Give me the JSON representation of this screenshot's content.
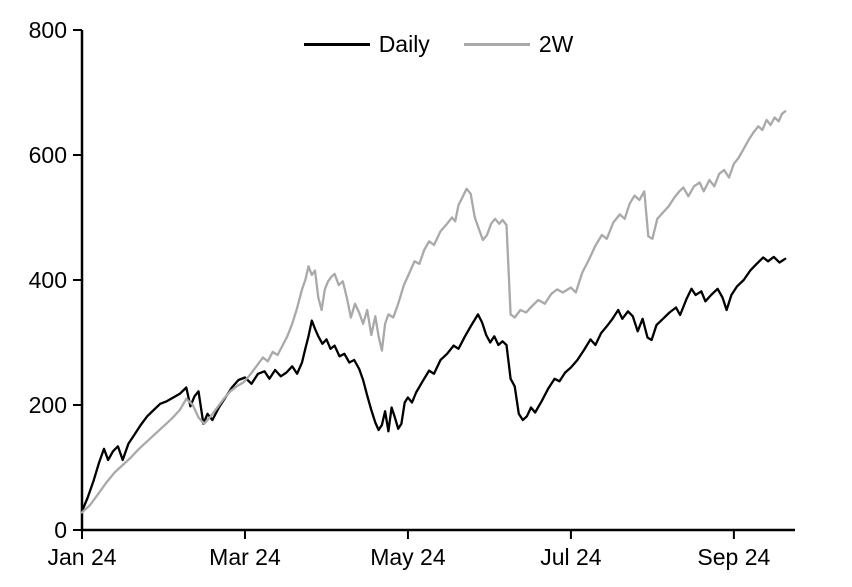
{
  "chart_data": {
    "type": "line",
    "title": "",
    "xlabel": "",
    "ylabel": "",
    "grid": false,
    "axis_color": "#000000",
    "x_values_unit": "months_from_jan24",
    "x_domain": [
      0,
      8.75
    ],
    "y_domain": [
      0,
      800
    ],
    "x_ticks": [
      {
        "value": 0,
        "label": "Jan 24"
      },
      {
        "value": 2,
        "label": "Mar 24"
      },
      {
        "value": 4,
        "label": "May 24"
      },
      {
        "value": 6,
        "label": "Jul 24"
      },
      {
        "value": 8,
        "label": "Sep 24"
      }
    ],
    "y_ticks": [
      {
        "value": 0,
        "label": "0"
      },
      {
        "value": 200,
        "label": "200"
      },
      {
        "value": 400,
        "label": "400"
      },
      {
        "value": 600,
        "label": "600"
      },
      {
        "value": 800,
        "label": "800"
      }
    ],
    "legend": {
      "position": "top-center",
      "entries": [
        {
          "name": "Daily",
          "color": "#000000"
        },
        {
          "name": "2W",
          "color": "#a9a9a9"
        }
      ]
    },
    "series": [
      {
        "name": "Daily",
        "color": "#000000",
        "points": [
          [
            0,
            30
          ],
          [
            0.07,
            52
          ],
          [
            0.14,
            78
          ],
          [
            0.21,
            108
          ],
          [
            0.27,
            130
          ],
          [
            0.32,
            112
          ],
          [
            0.38,
            126
          ],
          [
            0.44,
            134
          ],
          [
            0.5,
            112
          ],
          [
            0.57,
            138
          ],
          [
            0.64,
            152
          ],
          [
            0.72,
            168
          ],
          [
            0.8,
            182
          ],
          [
            0.88,
            192
          ],
          [
            0.96,
            202
          ],
          [
            1.04,
            206
          ],
          [
            1.12,
            212
          ],
          [
            1.2,
            218
          ],
          [
            1.28,
            228
          ],
          [
            1.33,
            198
          ],
          [
            1.38,
            214
          ],
          [
            1.43,
            222
          ],
          [
            1.49,
            170
          ],
          [
            1.54,
            186
          ],
          [
            1.6,
            176
          ],
          [
            1.68,
            196
          ],
          [
            1.76,
            212
          ],
          [
            1.84,
            228
          ],
          [
            1.92,
            240
          ],
          [
            2,
            244
          ],
          [
            2.08,
            234
          ],
          [
            2.16,
            250
          ],
          [
            2.24,
            254
          ],
          [
            2.3,
            242
          ],
          [
            2.37,
            256
          ],
          [
            2.44,
            246
          ],
          [
            2.51,
            252
          ],
          [
            2.58,
            262
          ],
          [
            2.64,
            250
          ],
          [
            2.7,
            268
          ],
          [
            2.74,
            290
          ],
          [
            2.78,
            310
          ],
          [
            2.82,
            335
          ],
          [
            2.86,
            322
          ],
          [
            2.9,
            310
          ],
          [
            2.95,
            298
          ],
          [
            3,
            305
          ],
          [
            3.05,
            290
          ],
          [
            3.1,
            295
          ],
          [
            3.16,
            278
          ],
          [
            3.22,
            282
          ],
          [
            3.28,
            268
          ],
          [
            3.34,
            272
          ],
          [
            3.4,
            258
          ],
          [
            3.45,
            240
          ],
          [
            3.5,
            215
          ],
          [
            3.55,
            192
          ],
          [
            3.6,
            172
          ],
          [
            3.64,
            160
          ],
          [
            3.68,
            168
          ],
          [
            3.72,
            190
          ],
          [
            3.76,
            158
          ],
          [
            3.8,
            196
          ],
          [
            3.84,
            180
          ],
          [
            3.88,
            162
          ],
          [
            3.92,
            170
          ],
          [
            3.96,
            204
          ],
          [
            4,
            212
          ],
          [
            4.05,
            204
          ],
          [
            4.1,
            220
          ],
          [
            4.18,
            238
          ],
          [
            4.26,
            255
          ],
          [
            4.32,
            250
          ],
          [
            4.4,
            272
          ],
          [
            4.48,
            282
          ],
          [
            4.56,
            295
          ],
          [
            4.62,
            290
          ],
          [
            4.7,
            310
          ],
          [
            4.78,
            328
          ],
          [
            4.86,
            345
          ],
          [
            4.91,
            332
          ],
          [
            4.96,
            312
          ],
          [
            5.01,
            300
          ],
          [
            5.06,
            310
          ],
          [
            5.11,
            296
          ],
          [
            5.16,
            302
          ],
          [
            5.21,
            296
          ],
          [
            5.26,
            242
          ],
          [
            5.31,
            230
          ],
          [
            5.36,
            186
          ],
          [
            5.41,
            176
          ],
          [
            5.46,
            182
          ],
          [
            5.51,
            196
          ],
          [
            5.56,
            188
          ],
          [
            5.64,
            206
          ],
          [
            5.72,
            226
          ],
          [
            5.8,
            242
          ],
          [
            5.86,
            238
          ],
          [
            5.93,
            252
          ],
          [
            6,
            260
          ],
          [
            6.08,
            272
          ],
          [
            6.16,
            288
          ],
          [
            6.24,
            305
          ],
          [
            6.3,
            296
          ],
          [
            6.37,
            315
          ],
          [
            6.44,
            326
          ],
          [
            6.51,
            338
          ],
          [
            6.58,
            352
          ],
          [
            6.63,
            338
          ],
          [
            6.7,
            350
          ],
          [
            6.76,
            342
          ],
          [
            6.82,
            318
          ],
          [
            6.88,
            338
          ],
          [
            6.94,
            308
          ],
          [
            6.99,
            304
          ],
          [
            7.05,
            328
          ],
          [
            7.13,
            338
          ],
          [
            7.21,
            348
          ],
          [
            7.29,
            356
          ],
          [
            7.34,
            344
          ],
          [
            7.42,
            370
          ],
          [
            7.48,
            386
          ],
          [
            7.53,
            376
          ],
          [
            7.6,
            382
          ],
          [
            7.65,
            366
          ],
          [
            7.72,
            376
          ],
          [
            7.8,
            386
          ],
          [
            7.86,
            372
          ],
          [
            7.91,
            352
          ],
          [
            7.97,
            376
          ],
          [
            8.04,
            390
          ],
          [
            8.12,
            400
          ],
          [
            8.2,
            415
          ],
          [
            8.28,
            426
          ],
          [
            8.36,
            436
          ],
          [
            8.42,
            430
          ],
          [
            8.49,
            437
          ],
          [
            8.56,
            428
          ],
          [
            8.63,
            434
          ]
        ]
      },
      {
        "name": "2W",
        "color": "#a9a9a9",
        "points": [
          [
            0,
            28
          ],
          [
            0.1,
            40
          ],
          [
            0.2,
            58
          ],
          [
            0.3,
            76
          ],
          [
            0.4,
            92
          ],
          [
            0.5,
            104
          ],
          [
            0.6,
            116
          ],
          [
            0.7,
            130
          ],
          [
            0.8,
            142
          ],
          [
            0.9,
            154
          ],
          [
            1,
            166
          ],
          [
            1.1,
            178
          ],
          [
            1.2,
            192
          ],
          [
            1.28,
            210
          ],
          [
            1.36,
            200
          ],
          [
            1.43,
            180
          ],
          [
            1.5,
            170
          ],
          [
            1.58,
            182
          ],
          [
            1.66,
            196
          ],
          [
            1.74,
            210
          ],
          [
            1.82,
            222
          ],
          [
            1.9,
            230
          ],
          [
            1.98,
            236
          ],
          [
            2.06,
            248
          ],
          [
            2.14,
            262
          ],
          [
            2.22,
            276
          ],
          [
            2.28,
            270
          ],
          [
            2.34,
            285
          ],
          [
            2.4,
            280
          ],
          [
            2.46,
            295
          ],
          [
            2.52,
            310
          ],
          [
            2.58,
            330
          ],
          [
            2.64,
            355
          ],
          [
            2.7,
            385
          ],
          [
            2.74,
            400
          ],
          [
            2.78,
            422
          ],
          [
            2.82,
            408
          ],
          [
            2.86,
            415
          ],
          [
            2.9,
            372
          ],
          [
            2.94,
            352
          ],
          [
            2.98,
            385
          ],
          [
            3.02,
            398
          ],
          [
            3.06,
            405
          ],
          [
            3.1,
            410
          ],
          [
            3.15,
            392
          ],
          [
            3.2,
            398
          ],
          [
            3.25,
            372
          ],
          [
            3.3,
            340
          ],
          [
            3.35,
            362
          ],
          [
            3.4,
            348
          ],
          [
            3.45,
            330
          ],
          [
            3.5,
            352
          ],
          [
            3.55,
            312
          ],
          [
            3.6,
            342
          ],
          [
            3.64,
            310
          ],
          [
            3.68,
            287
          ],
          [
            3.72,
            330
          ],
          [
            3.76,
            345
          ],
          [
            3.82,
            340
          ],
          [
            3.88,
            362
          ],
          [
            3.95,
            392
          ],
          [
            4.02,
            412
          ],
          [
            4.08,
            430
          ],
          [
            4.14,
            426
          ],
          [
            4.2,
            448
          ],
          [
            4.26,
            462
          ],
          [
            4.32,
            456
          ],
          [
            4.4,
            478
          ],
          [
            4.48,
            490
          ],
          [
            4.54,
            500
          ],
          [
            4.58,
            494
          ],
          [
            4.62,
            520
          ],
          [
            4.66,
            530
          ],
          [
            4.72,
            546
          ],
          [
            4.77,
            538
          ],
          [
            4.82,
            500
          ],
          [
            4.87,
            482
          ],
          [
            4.92,
            464
          ],
          [
            4.97,
            472
          ],
          [
            5.02,
            490
          ],
          [
            5.07,
            498
          ],
          [
            5.12,
            490
          ],
          [
            5.16,
            496
          ],
          [
            5.21,
            488
          ],
          [
            5.26,
            345
          ],
          [
            5.31,
            340
          ],
          [
            5.38,
            352
          ],
          [
            5.45,
            348
          ],
          [
            5.52,
            358
          ],
          [
            5.6,
            368
          ],
          [
            5.68,
            362
          ],
          [
            5.76,
            378
          ],
          [
            5.83,
            385
          ],
          [
            5.9,
            380
          ],
          [
            6,
            388
          ],
          [
            6.06,
            380
          ],
          [
            6.14,
            412
          ],
          [
            6.22,
            432
          ],
          [
            6.3,
            455
          ],
          [
            6.38,
            472
          ],
          [
            6.44,
            466
          ],
          [
            6.52,
            492
          ],
          [
            6.6,
            505
          ],
          [
            6.66,
            498
          ],
          [
            6.72,
            522
          ],
          [
            6.78,
            535
          ],
          [
            6.84,
            528
          ],
          [
            6.9,
            542
          ],
          [
            6.95,
            470
          ],
          [
            7,
            466
          ],
          [
            7.06,
            498
          ],
          [
            7.13,
            508
          ],
          [
            7.2,
            518
          ],
          [
            7.27,
            532
          ],
          [
            7.33,
            542
          ],
          [
            7.38,
            548
          ],
          [
            7.44,
            534
          ],
          [
            7.51,
            550
          ],
          [
            7.58,
            556
          ],
          [
            7.63,
            542
          ],
          [
            7.7,
            560
          ],
          [
            7.76,
            550
          ],
          [
            7.82,
            570
          ],
          [
            7.88,
            576
          ],
          [
            7.94,
            564
          ],
          [
            8,
            586
          ],
          [
            8.06,
            596
          ],
          [
            8.12,
            610
          ],
          [
            8.18,
            624
          ],
          [
            8.24,
            636
          ],
          [
            8.3,
            646
          ],
          [
            8.35,
            640
          ],
          [
            8.4,
            656
          ],
          [
            8.45,
            648
          ],
          [
            8.5,
            660
          ],
          [
            8.55,
            654
          ],
          [
            8.59,
            666
          ],
          [
            8.63,
            670
          ]
        ]
      }
    ]
  }
}
